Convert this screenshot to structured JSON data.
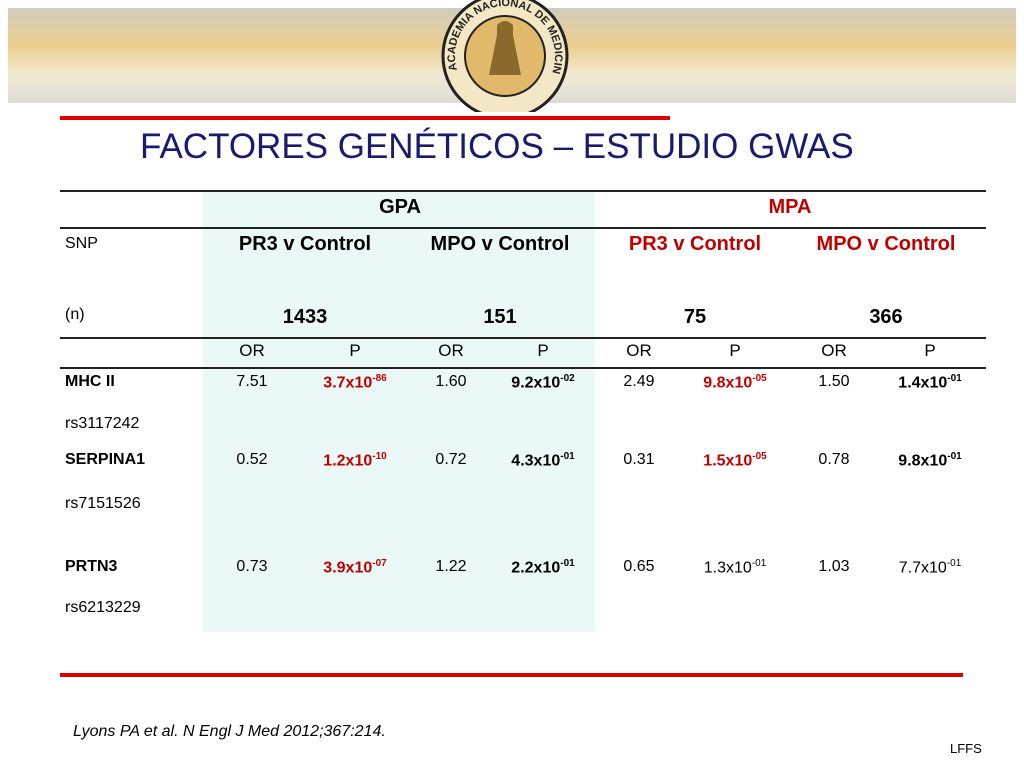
{
  "logo_text": "ACADEMIA NACIONAL DE MEDICINA",
  "title": "FACTORES GENÉTICOS – ESTUDIO GWAS",
  "table": {
    "groups": [
      "GPA",
      "MPA"
    ],
    "snp_label": "SNP",
    "n_label": "(n)",
    "comparisons": [
      "PR3 v Control",
      "MPO v Control",
      "PR3 v Control",
      "MPO v Control"
    ],
    "n": [
      1433,
      151,
      75,
      366
    ],
    "stats": [
      "OR",
      "P"
    ],
    "rows": [
      {
        "snp": "MHC II",
        "rs": "rs3117242",
        "cells": [
          "7.51",
          {
            "base": "3.7x10",
            "exp": "-86"
          },
          "1.60",
          {
            "base": "9.2x10",
            "exp": "-02"
          },
          "2.49",
          {
            "base": "9.8x10",
            "exp": "-05"
          },
          "1.50",
          {
            "base": "1.4x10",
            "exp": "-01"
          }
        ]
      },
      {
        "snp": "SERPINA1",
        "rs": "rs7151526",
        "cells": [
          "0.52",
          {
            "base": "1.2x10",
            "exp": "-10"
          },
          "0.72",
          {
            "base": "4.3x10",
            "exp": "-01"
          },
          "0.31",
          {
            "base": "1.5x10",
            "exp": "-05"
          },
          "0.78",
          {
            "base": "9.8x10",
            "exp": "-01"
          }
        ]
      },
      {
        "snp": "PRTN3",
        "rs": "rs6213229",
        "cells": [
          "0.73",
          {
            "base": "3.9x10",
            "exp": "-07"
          },
          "1.22",
          {
            "base": "2.2x10",
            "exp": "-01"
          },
          "0.65",
          {
            "base": "1.3x10",
            "exp": "-01"
          },
          "1.03",
          {
            "base": "7.7x10",
            "exp": "-01"
          }
        ]
      }
    ]
  },
  "citation": "Lyons PA et al. N Engl J Med 2012;367:214.",
  "footer": "LFFS"
}
